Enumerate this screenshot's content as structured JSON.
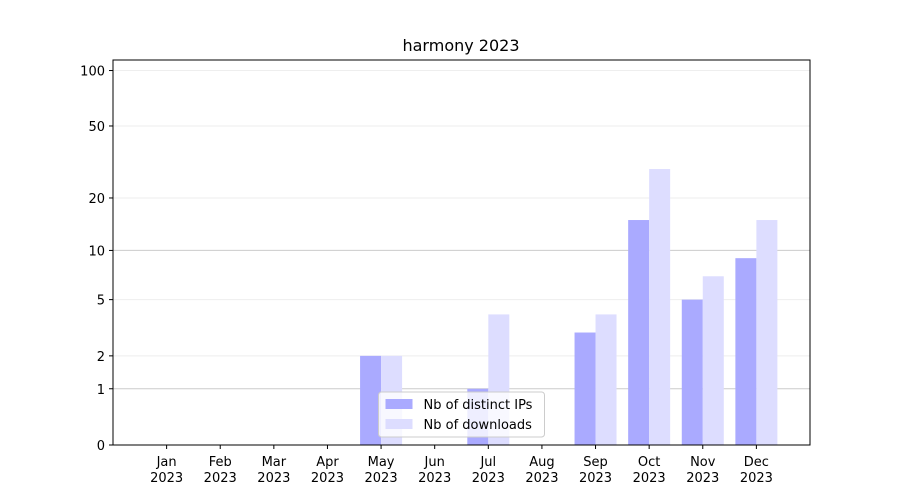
{
  "chart_data": {
    "type": "bar",
    "title": "harmony 2023",
    "categories": [
      "Jan 2023",
      "Feb 2023",
      "Mar 2023",
      "Apr 2023",
      "May 2023",
      "Jun 2023",
      "Jul 2023",
      "Aug 2023",
      "Sep 2023",
      "Oct 2023",
      "Nov 2023",
      "Dec 2023"
    ],
    "series": [
      {
        "name": "Nb of distinct IPs",
        "color": "#aaaaff",
        "values": [
          0,
          0,
          0,
          0,
          2,
          0,
          1,
          0,
          3,
          15,
          5,
          9
        ]
      },
      {
        "name": "Nb of downloads",
        "color": "#ddddff",
        "values": [
          0,
          0,
          0,
          0,
          2,
          0,
          4,
          0,
          4,
          29,
          7,
          15
        ]
      }
    ],
    "yscale": "log1p",
    "ylim": [
      0,
      114
    ],
    "yticks": [
      0,
      1,
      2,
      5,
      10,
      20,
      50,
      100
    ],
    "grid": true,
    "legend": "lower center"
  }
}
